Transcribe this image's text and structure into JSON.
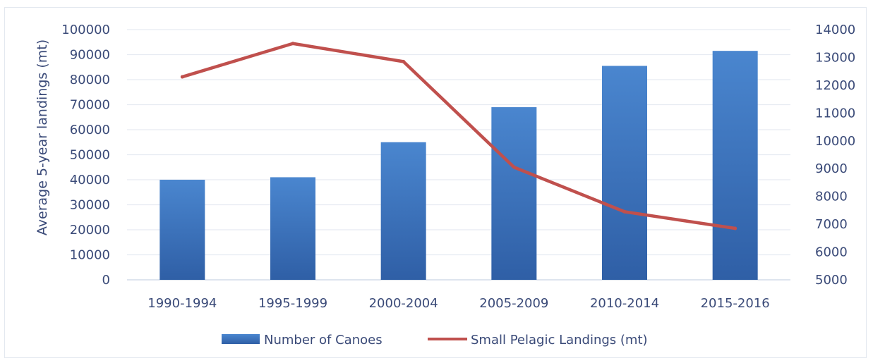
{
  "chart_data": {
    "type": "bar+line",
    "categories": [
      "1990-1994",
      "1995-1999",
      "2000-2004",
      "2005-2009",
      "2010-2014",
      "2015-2016"
    ],
    "series": [
      {
        "name": "Number of Canoes",
        "type": "bar",
        "axis": "left",
        "color": "#3f78c4",
        "values": [
          40000,
          41000,
          55000,
          69000,
          85500,
          91500
        ]
      },
      {
        "name": "Small Pelagic Landings (mt)",
        "type": "line",
        "axis": "right",
        "color": "#c0504d",
        "values": [
          12300,
          13500,
          12850,
          9050,
          7450,
          6850
        ]
      }
    ],
    "ylabel": "Average 5-year landings (mt)",
    "ylim": [
      0,
      100000
    ],
    "y_ticks": [
      "0",
      "10000",
      "20000",
      "30000",
      "40000",
      "50000",
      "60000",
      "70000",
      "80000",
      "90000",
      "100000"
    ],
    "y2lim": [
      5000,
      14000
    ],
    "y2_ticks": [
      "5000",
      "6000",
      "7000",
      "8000",
      "9000",
      "10000",
      "11000",
      "12000",
      "13000",
      "14000"
    ],
    "grid": true,
    "legend": "bottom"
  }
}
